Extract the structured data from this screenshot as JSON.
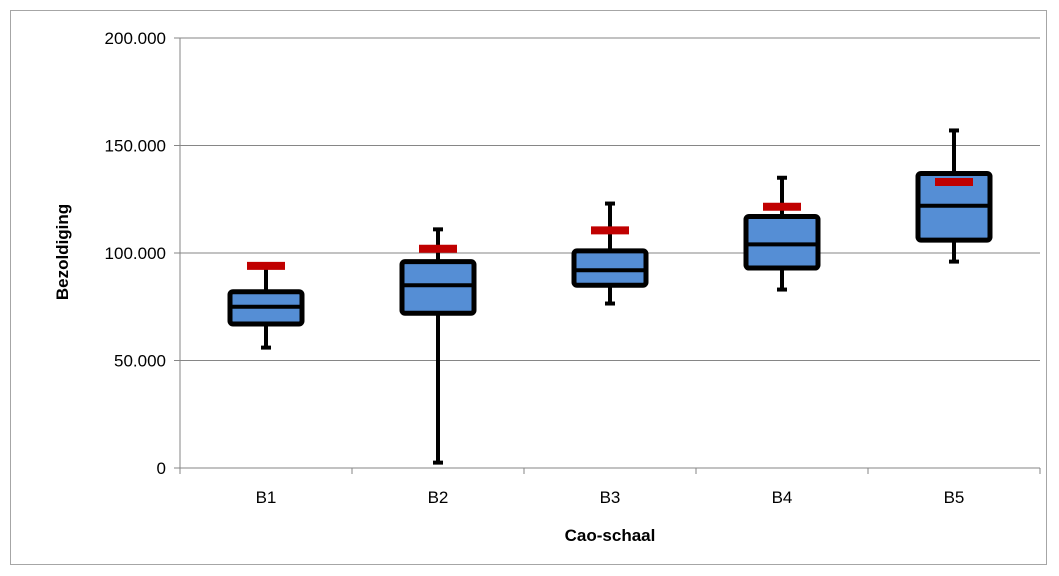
{
  "chart_data": {
    "type": "boxplot",
    "xlabel": "Cao-schaal",
    "ylabel": "Bezoldiging",
    "ylim": [
      0,
      200000
    ],
    "yticks": [
      0,
      50000,
      100000,
      150000,
      200000
    ],
    "ytick_labels": [
      "0",
      "50.000",
      "100.000",
      "150.000",
      "200.000"
    ],
    "categories": [
      "B1",
      "B2",
      "B3",
      "B4",
      "B5"
    ],
    "boxes": [
      {
        "category": "B1",
        "min": 56000,
        "q1": 67000,
        "median": 75000,
        "q3": 82000,
        "max": 94000,
        "marker": 94000
      },
      {
        "category": "B2",
        "min": 2500,
        "q1": 72000,
        "median": 85000,
        "q3": 96000,
        "max": 111000,
        "marker": 102000
      },
      {
        "category": "B3",
        "min": 76500,
        "q1": 85000,
        "median": 92000,
        "q3": 101000,
        "max": 123000,
        "marker": 110500
      },
      {
        "category": "B4",
        "min": 83000,
        "q1": 93000,
        "median": 104000,
        "q3": 117000,
        "max": 135000,
        "marker": 121500
      },
      {
        "category": "B5",
        "min": 96000,
        "q1": 106000,
        "median": 122000,
        "q3": 137000,
        "max": 157000,
        "marker": 133000
      }
    ],
    "grid": true,
    "legend": "none",
    "colors": {
      "box_fill": "#558ed5",
      "box_stroke": "#000000",
      "marker": "#c00000",
      "grid": "#868686"
    }
  }
}
